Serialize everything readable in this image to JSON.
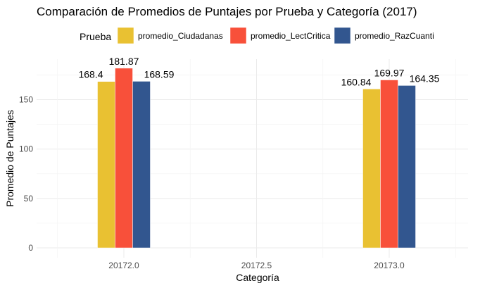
{
  "chart_data": {
    "type": "bar",
    "title": "Comparación de Promedios de Puntajes por Prueba y Categoría (2017)",
    "xlabel": "Categoría",
    "ylabel": "Promedio de Puntajes",
    "x_ticks": [
      "20172.0",
      "20172.5",
      "20173.0"
    ],
    "x_tick_values": [
      20172.0,
      20172.5,
      20173.0
    ],
    "y_ticks": [
      0,
      50,
      100,
      150
    ],
    "ylim": [
      0,
      190
    ],
    "grid": true,
    "legend_title": "Prueba",
    "legend_position": "top",
    "categories": [
      20172.0,
      20173.0
    ],
    "series": [
      {
        "name": "promedio_Ciudadanas",
        "color": "#E9C132",
        "values": [
          168.4,
          160.84
        ],
        "labels": [
          "168.4",
          "160.84"
        ]
      },
      {
        "name": "promedio_LectCritica",
        "color": "#F8503A",
        "values": [
          181.87,
          169.97
        ],
        "labels": [
          "181.87",
          "169.97"
        ]
      },
      {
        "name": "promedio_RazCuanti",
        "color": "#32568F",
        "values": [
          168.59,
          164.35
        ],
        "labels": [
          "168.59",
          "164.35"
        ]
      }
    ]
  }
}
